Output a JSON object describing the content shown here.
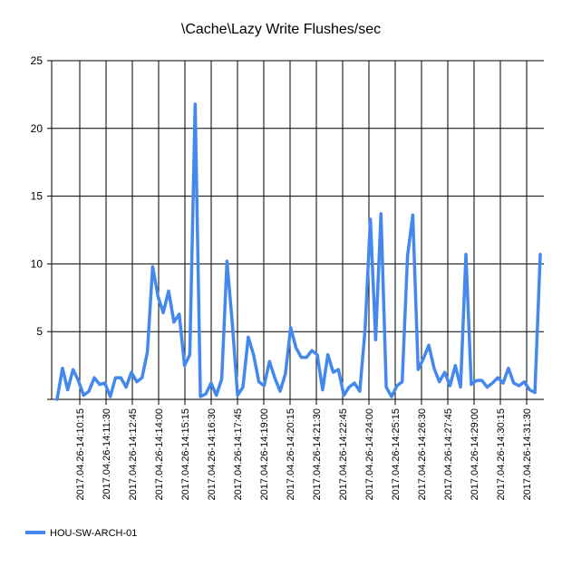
{
  "chart_data": {
    "type": "line",
    "title": "\\Cache\\Lazy Write Flushes/sec",
    "xlabel": "",
    "ylabel": "",
    "ylim": [
      0,
      25
    ],
    "yticks": [
      0,
      5,
      10,
      15,
      20,
      25
    ],
    "ytick_labels": [
      "",
      "5",
      "10",
      "15",
      "20",
      "25"
    ],
    "xtick_labels": [
      "2017.04.26-14:10:15",
      "2017.04.26-14:11:30",
      "2017.04.26-14:12:45",
      "2017.04.26-14:14:00",
      "2017.04.26-14:15:15",
      "2017.04.26-14:16:30",
      "2017.04.26-14:17:45",
      "2017.04.26-14:19:00",
      "2017.04.26-14:20:15",
      "2017.04.26-14:21:30",
      "2017.04.26-14:22:45",
      "2017.04.26-14:24:00",
      "2017.04.26-14:25:15",
      "2017.04.26-14:26:30",
      "2017.04.26-14:27:45",
      "2017.04.26-14:29:00",
      "2017.04.26-14:30:15",
      "2017.04.26-14:31:30"
    ],
    "grid": true,
    "legend_position": "bottom-left",
    "series": [
      {
        "name": "HOU-SW-ARCH-01",
        "color": "#4488ee",
        "values": [
          0.0,
          2.3,
          0.7,
          2.2,
          1.4,
          0.3,
          0.6,
          1.6,
          1.1,
          1.2,
          0.2,
          1.6,
          1.6,
          0.9,
          2.0,
          1.3,
          1.6,
          3.5,
          9.8,
          7.6,
          6.4,
          8.0,
          5.7,
          6.3,
          2.5,
          3.3,
          21.8,
          0.2,
          0.4,
          1.2,
          0.3,
          1.5,
          10.2,
          5.6,
          0.3,
          0.9,
          4.6,
          3.3,
          1.3,
          1.0,
          2.8,
          1.6,
          0.6,
          1.9,
          5.3,
          3.8,
          3.1,
          3.1,
          3.6,
          3.3,
          0.7,
          3.3,
          2.0,
          2.2,
          0.3,
          0.9,
          1.2,
          0.6,
          5.1,
          13.3,
          4.4,
          13.7,
          0.9,
          0.2,
          1.0,
          1.3,
          10.6,
          13.6,
          2.2,
          3.0,
          4.0,
          2.3,
          1.3,
          2.0,
          1.0,
          2.5,
          0.9,
          10.7,
          1.1,
          1.4,
          1.4,
          0.9,
          1.2,
          1.6,
          1.2,
          2.3,
          1.2,
          1.0,
          1.3,
          0.7,
          0.5,
          10.7
        ]
      }
    ]
  }
}
